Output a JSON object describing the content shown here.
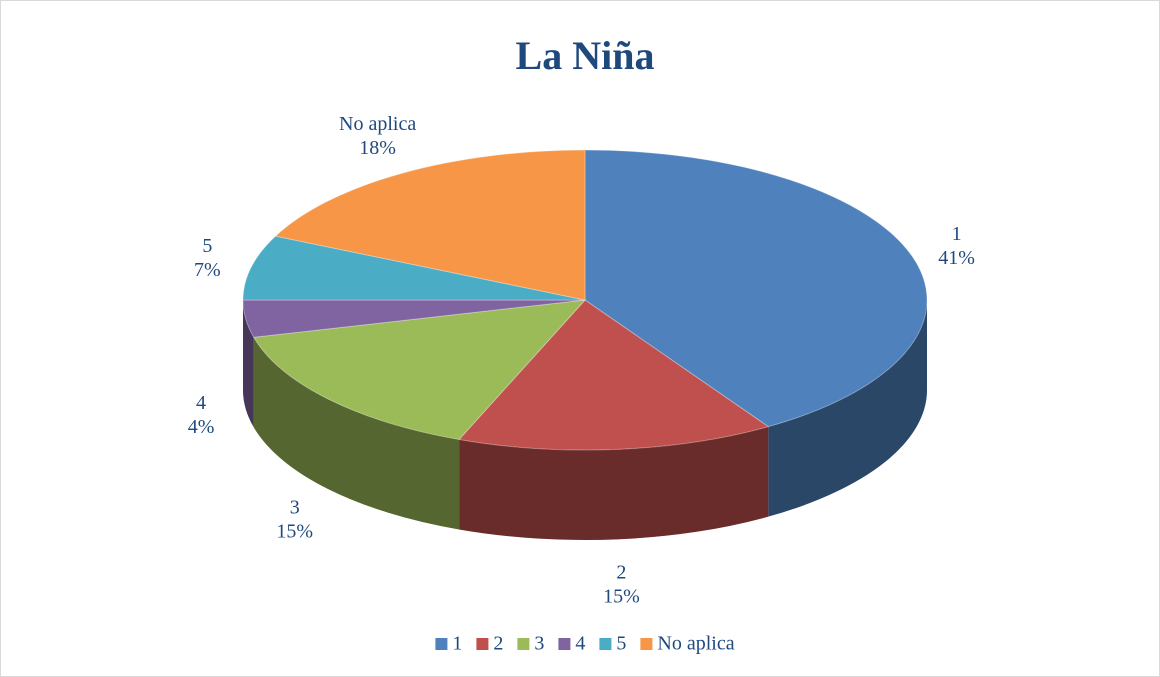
{
  "chart_data": {
    "type": "pie",
    "title": "La Niña",
    "categories": [
      "1",
      "2",
      "3",
      "4",
      "5",
      "No aplica"
    ],
    "values": [
      41,
      15,
      15,
      4,
      7,
      18
    ],
    "value_labels": [
      "41%",
      "15%",
      "15%",
      "4%",
      "7%",
      "18%"
    ],
    "colors": [
      "#4f81bd",
      "#c0504d",
      "#9bbb59",
      "#8064a2",
      "#4bacc6",
      "#f79646"
    ],
    "legend": "bottom"
  }
}
